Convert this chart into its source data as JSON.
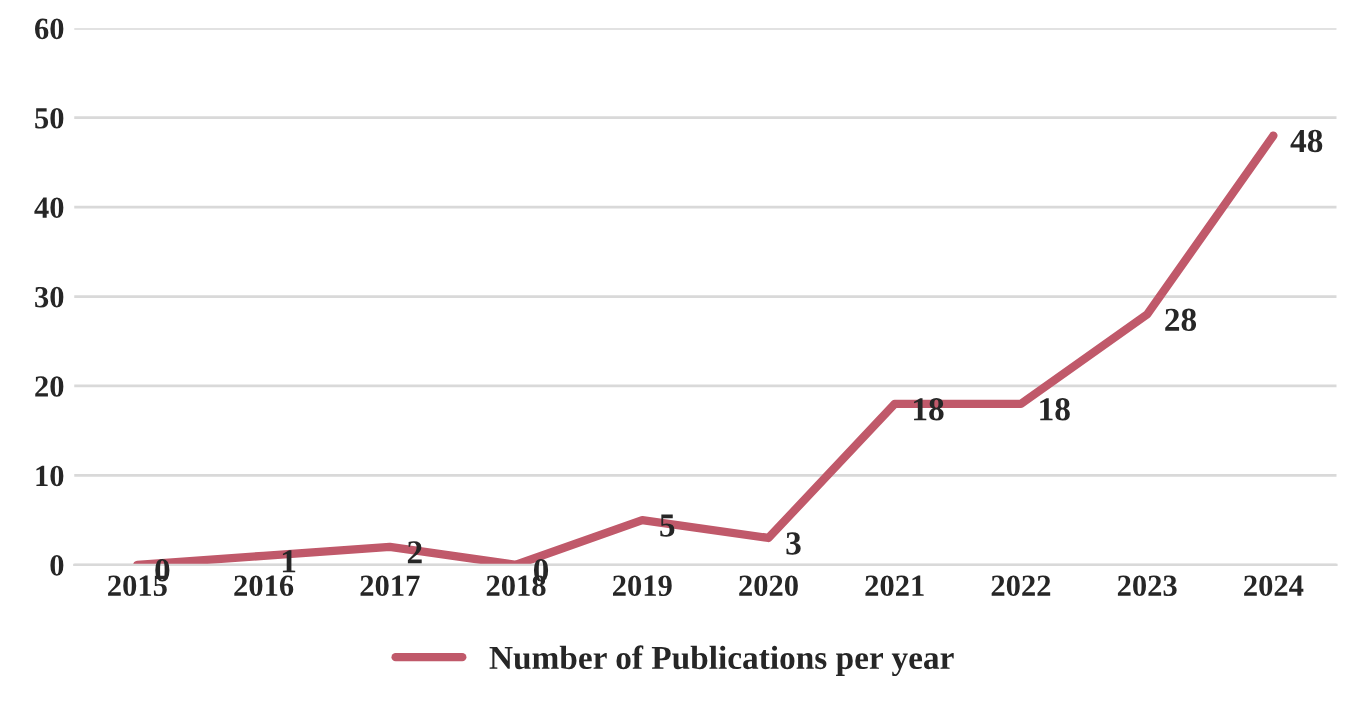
{
  "chart_data": {
    "type": "line",
    "categories": [
      "2015",
      "2016",
      "2017",
      "2018",
      "2019",
      "2020",
      "2021",
      "2022",
      "2023",
      "2024"
    ],
    "series": [
      {
        "name": "Number of Publications per year",
        "color": "#c0596a",
        "values": [
          0,
          1,
          2,
          0,
          5,
          3,
          18,
          18,
          28,
          48
        ]
      }
    ],
    "ylim": [
      0,
      60
    ],
    "yticks": [
      0,
      10,
      20,
      30,
      40,
      50,
      60
    ],
    "grid": "y",
    "legend": "bottom",
    "data_labels": true,
    "marker": "none",
    "line_style": "solid"
  }
}
